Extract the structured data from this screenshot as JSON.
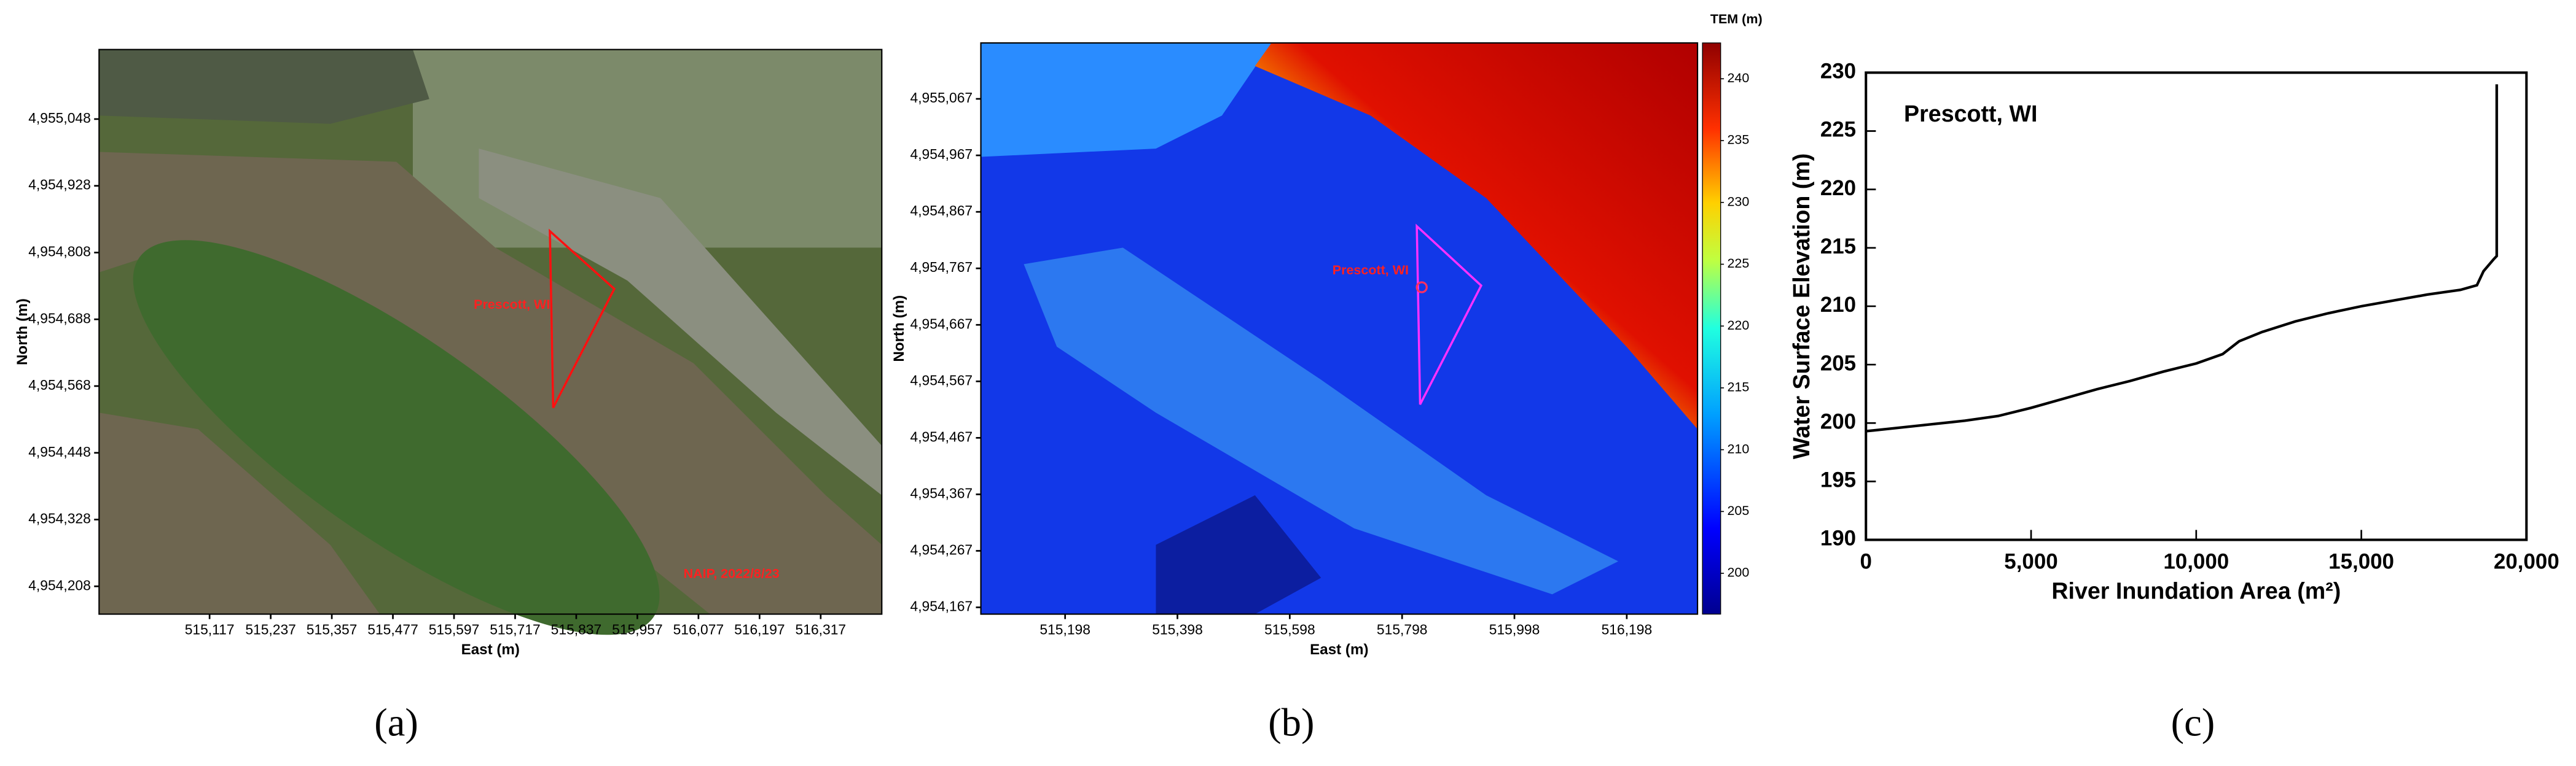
{
  "chart_data": [
    {
      "type": "map",
      "panel_label": "(a)",
      "xlabel": "East (m)",
      "ylabel": "North (m)",
      "xlim": [
        514900,
        516437
      ],
      "ylim": [
        4954158,
        4955173
      ],
      "xticks": [
        {
          "value": 515117,
          "label": "515,117"
        },
        {
          "value": 515237,
          "label": "515,237"
        },
        {
          "value": 515357,
          "label": "515,357"
        },
        {
          "value": 515477,
          "label": "515,477"
        },
        {
          "value": 515597,
          "label": "515,597"
        },
        {
          "value": 515717,
          "label": "515,717"
        },
        {
          "value": 515837,
          "label": "515,837"
        },
        {
          "value": 515957,
          "label": "515,957"
        },
        {
          "value": 516077,
          "label": "516,077"
        },
        {
          "value": 516197,
          "label": "516,197"
        },
        {
          "value": 516317,
          "label": "516,317"
        }
      ],
      "yticks": [
        {
          "value": 4954208,
          "label": "4,954,208"
        },
        {
          "value": 4954328,
          "label": "4,954,328"
        },
        {
          "value": 4954448,
          "label": "4,954,448"
        },
        {
          "value": 4954568,
          "label": "4,954,568"
        },
        {
          "value": 4954688,
          "label": "4,954,688"
        },
        {
          "value": 4954808,
          "label": "4,954,808"
        },
        {
          "value": 4954928,
          "label": "4,954,928"
        },
        {
          "value": 4955048,
          "label": "4,955,048"
        }
      ],
      "annotations": [
        "Prescott, WI",
        "NAIP, 2022/8/23"
      ],
      "annotation_color": "#ff2020"
    },
    {
      "type": "map",
      "panel_label": "(b)",
      "xlabel": "East (m)",
      "ylabel": "North (m)",
      "xlim": [
        515048,
        516324
      ],
      "ylim": [
        4954155,
        4955166
      ],
      "xticks": [
        {
          "value": 515198,
          "label": "515,198"
        },
        {
          "value": 515398,
          "label": "515,398"
        },
        {
          "value": 515598,
          "label": "515,598"
        },
        {
          "value": 515798,
          "label": "515,798"
        },
        {
          "value": 515998,
          "label": "515,998"
        },
        {
          "value": 516198,
          "label": "516,198"
        }
      ],
      "yticks": [
        {
          "value": 4954167,
          "label": "4,954,167"
        },
        {
          "value": 4954267,
          "label": "4,954,267"
        },
        {
          "value": 4954367,
          "label": "4,954,367"
        },
        {
          "value": 4954467,
          "label": "4,954,467"
        },
        {
          "value": 4954567,
          "label": "4,954,567"
        },
        {
          "value": 4954667,
          "label": "4,954,667"
        },
        {
          "value": 4954767,
          "label": "4,954,767"
        },
        {
          "value": 4954867,
          "label": "4,954,867"
        },
        {
          "value": 4954967,
          "label": "4,954,967"
        },
        {
          "value": 4955067,
          "label": "4,955,067"
        }
      ],
      "annotations": [
        "Prescott, WI"
      ],
      "annotation_color": "#ff2020",
      "colorbar": {
        "title": "TEM (m)",
        "lim": [
          196.7,
          242.9
        ],
        "ticks": [
          200,
          205,
          210,
          215,
          220,
          225,
          230,
          235,
          240
        ]
      }
    },
    {
      "type": "line",
      "panel_label": "(c)",
      "title": "Prescott, WI",
      "xlabel": "River Inundation Area (m²)",
      "ylabel": "Water Surface Elevation (m)",
      "xlim": [
        0,
        20000
      ],
      "ylim": [
        190,
        230
      ],
      "xticks": [
        0,
        {
          "value": 5000,
          "label": "5,000"
        },
        {
          "value": 10000,
          "label": "10,000"
        },
        {
          "value": 15000,
          "label": "15,000"
        },
        {
          "value": 20000,
          "label": "20,000"
        }
      ],
      "yticks": [
        190,
        195,
        200,
        205,
        210,
        215,
        220,
        225,
        230
      ],
      "color": "#000000",
      "x": [
        0,
        1000,
        2000,
        3000,
        4000,
        5000,
        6000,
        7000,
        8000,
        9000,
        10000,
        10800,
        11300,
        12000,
        13000,
        14000,
        15000,
        16000,
        17000,
        18000,
        18500,
        18700,
        19000,
        19100,
        19100
      ],
      "values": [
        199.3,
        199.6,
        199.9,
        200.2,
        200.6,
        201.3,
        202.1,
        202.9,
        203.6,
        204.4,
        205.1,
        205.9,
        207.0,
        207.8,
        208.7,
        209.4,
        210.0,
        210.5,
        211.0,
        211.4,
        211.8,
        213.0,
        214.0,
        214.3,
        229.0
      ]
    }
  ]
}
